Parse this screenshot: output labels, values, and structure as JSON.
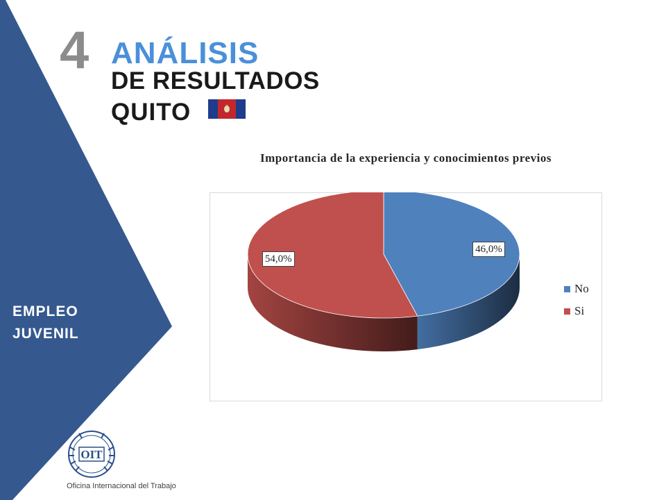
{
  "sidebar": {
    "label_line1": "EMPLEO",
    "label_line2": "JUVENIL",
    "color": "#35598e"
  },
  "header": {
    "section_number": "4",
    "title_main": "ANÁLISIS",
    "title_sub": "DE RESULTADOS",
    "city": "QUITO",
    "accent_color": "#4a90d9",
    "flag_icon": "quito-flag-icon"
  },
  "logo": {
    "emblem_text": "OIT",
    "caption": "Oficina Internacional del Trabajo",
    "icon": "oit-emblem-icon"
  },
  "chart_data": {
    "type": "pie",
    "title": "Importancia de la experiencia y conocimientos previos",
    "slices": [
      {
        "label": "No",
        "value": 46.0,
        "display": "46,0%",
        "color": "#4f81bd"
      },
      {
        "label": "Si",
        "value": 54.0,
        "display": "54,0%",
        "color": "#c0504d"
      }
    ],
    "legend_position": "right",
    "style": "3d"
  }
}
